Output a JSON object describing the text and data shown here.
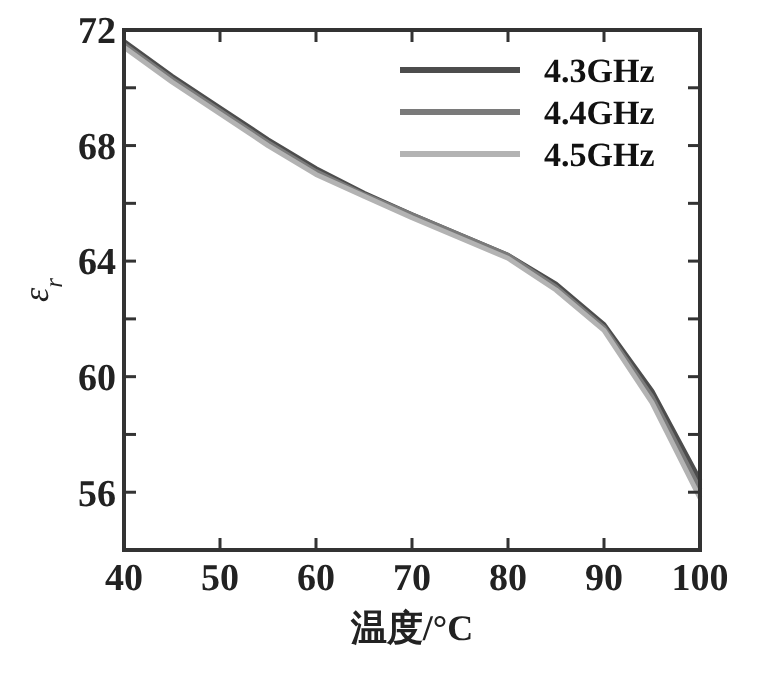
{
  "chart_data": {
    "type": "line",
    "xlabel": "温度/°C",
    "ylabel": "ε$_{r}$",
    "x": [
      40,
      45,
      50,
      55,
      60,
      65,
      70,
      75,
      80,
      85,
      90,
      95,
      100
    ],
    "series": [
      {
        "name": "4.3GHz",
        "color": "#4d4d4d",
        "values": [
          71.6,
          70.4,
          69.3,
          68.2,
          67.2,
          66.35,
          65.6,
          64.9,
          64.2,
          63.2,
          61.8,
          59.5,
          56.4
        ]
      },
      {
        "name": "4.4GHz",
        "color": "#7a7a7a",
        "values": [
          71.5,
          70.3,
          69.2,
          68.1,
          67.1,
          66.3,
          65.6,
          64.9,
          64.2,
          63.1,
          61.7,
          59.3,
          56.1
        ]
      },
      {
        "name": "4.5GHz",
        "color": "#b3b3b3",
        "values": [
          71.4,
          70.2,
          69.1,
          68.0,
          67.0,
          66.25,
          65.5,
          64.8,
          64.1,
          63.0,
          61.6,
          59.1,
          55.8
        ]
      }
    ],
    "xlim": [
      40,
      100
    ],
    "xticks": [
      40,
      50,
      60,
      70,
      80,
      90,
      100
    ],
    "ylim": [
      54,
      72
    ],
    "yticks": [
      {
        "value": 56,
        "label": "56"
      },
      {
        "value": 58,
        "label": null
      },
      {
        "value": 60,
        "label": "60"
      },
      {
        "value": 62,
        "label": null
      },
      {
        "value": 64,
        "label": "64"
      },
      {
        "value": 66,
        "label": null
      },
      {
        "value": 68,
        "label": "68"
      },
      {
        "value": 70,
        "label": null
      },
      {
        "value": 72,
        "label": "72"
      }
    ],
    "grid": false,
    "legend": "top right",
    "marker": "none",
    "line_style": "solid"
  }
}
